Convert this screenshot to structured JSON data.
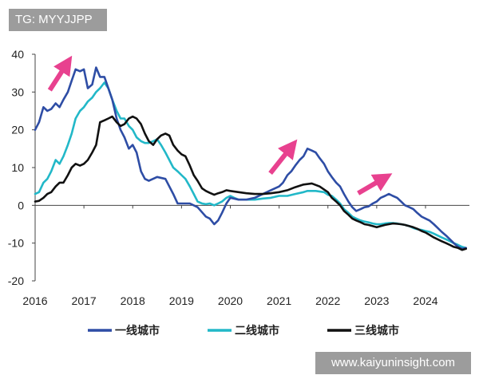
{
  "watermark_top": "TG: MYYJJPP",
  "watermark_bottom": "www.kaiyuninsight.com",
  "chart_data": {
    "type": "line",
    "xlim": [
      2016.0,
      2024.9
    ],
    "ylim": [
      -20,
      40
    ],
    "x_ticks": [
      "2016",
      "2017",
      "2018",
      "2019",
      "2020",
      "2021",
      "2022",
      "2023",
      "2024"
    ],
    "y_ticks": [
      "40",
      "30",
      "20",
      "10",
      "0",
      "-10",
      "-20"
    ],
    "grid": false,
    "legend_position": "bottom",
    "annotations": [
      "up-arrow-2016",
      "up-arrow-2021",
      "up-arrow-2023"
    ],
    "series": [
      {
        "name": "一线城市",
        "color": "#2e4da5",
        "points": [
          [
            2016.0,
            20
          ],
          [
            2016.08,
            22
          ],
          [
            2016.17,
            26
          ],
          [
            2016.25,
            25
          ],
          [
            2016.33,
            25.5
          ],
          [
            2016.42,
            27
          ],
          [
            2016.5,
            26
          ],
          [
            2016.58,
            28
          ],
          [
            2016.67,
            30
          ],
          [
            2016.75,
            33
          ],
          [
            2016.83,
            36
          ],
          [
            2016.92,
            35.5
          ],
          [
            2017.0,
            36
          ],
          [
            2017.08,
            31
          ],
          [
            2017.17,
            32
          ],
          [
            2017.25,
            36.5
          ],
          [
            2017.33,
            34
          ],
          [
            2017.42,
            34
          ],
          [
            2017.5,
            31
          ],
          [
            2017.58,
            28
          ],
          [
            2017.67,
            23
          ],
          [
            2017.75,
            20
          ],
          [
            2017.83,
            18
          ],
          [
            2017.92,
            15
          ],
          [
            2018.0,
            16
          ],
          [
            2018.08,
            14
          ],
          [
            2018.17,
            9
          ],
          [
            2018.25,
            7
          ],
          [
            2018.33,
            6.5
          ],
          [
            2018.5,
            7.5
          ],
          [
            2018.67,
            7
          ],
          [
            2018.83,
            3
          ],
          [
            2018.92,
            0.5
          ],
          [
            2019.0,
            0.5
          ],
          [
            2019.17,
            0.5
          ],
          [
            2019.33,
            -0.5
          ],
          [
            2019.5,
            -3
          ],
          [
            2019.58,
            -3.5
          ],
          [
            2019.67,
            -5
          ],
          [
            2019.75,
            -4
          ],
          [
            2019.83,
            -2
          ],
          [
            2019.92,
            0.5
          ],
          [
            2020.0,
            2
          ],
          [
            2020.17,
            1.5
          ],
          [
            2020.33,
            1.5
          ],
          [
            2020.5,
            2
          ],
          [
            2020.67,
            3
          ],
          [
            2020.83,
            4
          ],
          [
            2021.0,
            5
          ],
          [
            2021.08,
            6
          ],
          [
            2021.17,
            8
          ],
          [
            2021.25,
            9
          ],
          [
            2021.33,
            10.5
          ],
          [
            2021.42,
            12
          ],
          [
            2021.5,
            13
          ],
          [
            2021.58,
            15
          ],
          [
            2021.67,
            14.5
          ],
          [
            2021.75,
            14
          ],
          [
            2021.83,
            12.5
          ],
          [
            2021.92,
            11
          ],
          [
            2022.0,
            9
          ],
          [
            2022.08,
            7.5
          ],
          [
            2022.17,
            6
          ],
          [
            2022.25,
            5
          ],
          [
            2022.33,
            3
          ],
          [
            2022.42,
            1
          ],
          [
            2022.5,
            -0.5
          ],
          [
            2022.58,
            -1.5
          ],
          [
            2022.67,
            -1
          ],
          [
            2022.75,
            -0.5
          ],
          [
            2022.83,
            -0.3
          ],
          [
            2022.92,
            0.5
          ],
          [
            2023.0,
            1
          ],
          [
            2023.08,
            2
          ],
          [
            2023.17,
            2.5
          ],
          [
            2023.25,
            3
          ],
          [
            2023.33,
            2.5
          ],
          [
            2023.42,
            2
          ],
          [
            2023.5,
            1
          ],
          [
            2023.58,
            0
          ],
          [
            2023.67,
            -0.5
          ],
          [
            2023.75,
            -1
          ],
          [
            2023.83,
            -2
          ],
          [
            2023.92,
            -3
          ],
          [
            2024.0,
            -3.5
          ],
          [
            2024.08,
            -4
          ],
          [
            2024.17,
            -5
          ],
          [
            2024.25,
            -6
          ],
          [
            2024.33,
            -7
          ],
          [
            2024.42,
            -8
          ],
          [
            2024.5,
            -9
          ],
          [
            2024.58,
            -10
          ],
          [
            2024.67,
            -11
          ],
          [
            2024.75,
            -11.5
          ],
          [
            2024.83,
            -11.3
          ]
        ]
      },
      {
        "name": "二线城市",
        "color": "#22b8c8",
        "points": [
          [
            2016.0,
            3
          ],
          [
            2016.08,
            3.5
          ],
          [
            2016.17,
            6
          ],
          [
            2016.25,
            7
          ],
          [
            2016.33,
            9
          ],
          [
            2016.42,
            12
          ],
          [
            2016.5,
            11
          ],
          [
            2016.58,
            13
          ],
          [
            2016.67,
            16
          ],
          [
            2016.75,
            19
          ],
          [
            2016.83,
            23
          ],
          [
            2016.92,
            25
          ],
          [
            2017.0,
            26
          ],
          [
            2017.08,
            27.5
          ],
          [
            2017.17,
            28.5
          ],
          [
            2017.25,
            30
          ],
          [
            2017.33,
            31
          ],
          [
            2017.42,
            32.5
          ],
          [
            2017.5,
            31
          ],
          [
            2017.58,
            28
          ],
          [
            2017.67,
            25
          ],
          [
            2017.75,
            23
          ],
          [
            2017.83,
            23
          ],
          [
            2017.92,
            21
          ],
          [
            2018.0,
            20
          ],
          [
            2018.08,
            18
          ],
          [
            2018.17,
            17
          ],
          [
            2018.25,
            16.5
          ],
          [
            2018.33,
            16.5
          ],
          [
            2018.42,
            17
          ],
          [
            2018.5,
            17.5
          ],
          [
            2018.58,
            16
          ],
          [
            2018.67,
            14
          ],
          [
            2018.75,
            12
          ],
          [
            2018.83,
            10
          ],
          [
            2018.92,
            9
          ],
          [
            2019.0,
            8
          ],
          [
            2019.08,
            7
          ],
          [
            2019.17,
            5
          ],
          [
            2019.25,
            3
          ],
          [
            2019.33,
            1
          ],
          [
            2019.42,
            0.5
          ],
          [
            2019.5,
            0.3
          ],
          [
            2019.58,
            0.5
          ],
          [
            2019.67,
            0
          ],
          [
            2019.75,
            0.5
          ],
          [
            2019.83,
            1
          ],
          [
            2019.92,
            2
          ],
          [
            2020.0,
            2.5
          ],
          [
            2020.08,
            2
          ],
          [
            2020.17,
            1.5
          ],
          [
            2020.33,
            1.5
          ],
          [
            2020.5,
            1.5
          ],
          [
            2020.67,
            1.8
          ],
          [
            2020.83,
            2
          ],
          [
            2021.0,
            2.5
          ],
          [
            2021.17,
            2.5
          ],
          [
            2021.33,
            3
          ],
          [
            2021.5,
            3.5
          ],
          [
            2021.58,
            3.8
          ],
          [
            2021.75,
            3.8
          ],
          [
            2021.92,
            3.5
          ],
          [
            2022.0,
            2.8
          ],
          [
            2022.08,
            2.5
          ],
          [
            2022.17,
            1.5
          ],
          [
            2022.25,
            0.5
          ],
          [
            2022.33,
            -1
          ],
          [
            2022.42,
            -2
          ],
          [
            2022.5,
            -3
          ],
          [
            2022.58,
            -3.5
          ],
          [
            2022.67,
            -4
          ],
          [
            2022.75,
            -4.3
          ],
          [
            2022.83,
            -4.5
          ],
          [
            2022.92,
            -4.8
          ],
          [
            2023.0,
            -5
          ],
          [
            2023.08,
            -5
          ],
          [
            2023.17,
            -4.8
          ],
          [
            2023.25,
            -4.7
          ],
          [
            2023.33,
            -4.7
          ],
          [
            2023.42,
            -4.8
          ],
          [
            2023.5,
            -5
          ],
          [
            2023.58,
            -5.2
          ],
          [
            2023.67,
            -5.5
          ],
          [
            2023.75,
            -6
          ],
          [
            2023.83,
            -6.3
          ],
          [
            2023.92,
            -6.5
          ],
          [
            2024.0,
            -6.8
          ],
          [
            2024.08,
            -7
          ],
          [
            2024.17,
            -7.5
          ],
          [
            2024.25,
            -8
          ],
          [
            2024.33,
            -8.5
          ],
          [
            2024.42,
            -9
          ],
          [
            2024.5,
            -9.5
          ],
          [
            2024.58,
            -10
          ],
          [
            2024.67,
            -10.5
          ],
          [
            2024.75,
            -11
          ],
          [
            2024.83,
            -11.3
          ]
        ]
      },
      {
        "name": "三线城市",
        "color": "#111111",
        "points": [
          [
            2016.0,
            1
          ],
          [
            2016.08,
            1.2
          ],
          [
            2016.17,
            2
          ],
          [
            2016.25,
            3
          ],
          [
            2016.33,
            3.5
          ],
          [
            2016.42,
            5
          ],
          [
            2016.5,
            6
          ],
          [
            2016.58,
            6
          ],
          [
            2016.67,
            8
          ],
          [
            2016.75,
            10
          ],
          [
            2016.83,
            11
          ],
          [
            2016.92,
            10.5
          ],
          [
            2017.0,
            11
          ],
          [
            2017.08,
            12
          ],
          [
            2017.17,
            14
          ],
          [
            2017.25,
            16
          ],
          [
            2017.33,
            22
          ],
          [
            2017.42,
            22.5
          ],
          [
            2017.5,
            23
          ],
          [
            2017.58,
            23.5
          ],
          [
            2017.67,
            22
          ],
          [
            2017.75,
            21
          ],
          [
            2017.83,
            21.5
          ],
          [
            2017.92,
            23
          ],
          [
            2018.0,
            23.5
          ],
          [
            2018.08,
            23
          ],
          [
            2018.17,
            21.5
          ],
          [
            2018.25,
            19
          ],
          [
            2018.33,
            17
          ],
          [
            2018.42,
            16
          ],
          [
            2018.5,
            17.5
          ],
          [
            2018.58,
            18.5
          ],
          [
            2018.67,
            19
          ],
          [
            2018.75,
            18.5
          ],
          [
            2018.83,
            16
          ],
          [
            2018.92,
            14.5
          ],
          [
            2019.0,
            13.5
          ],
          [
            2019.08,
            13
          ],
          [
            2019.17,
            10.5
          ],
          [
            2019.25,
            8
          ],
          [
            2019.33,
            6.5
          ],
          [
            2019.42,
            4.5
          ],
          [
            2019.5,
            3.8
          ],
          [
            2019.58,
            3.3
          ],
          [
            2019.67,
            2.8
          ],
          [
            2019.75,
            3.2
          ],
          [
            2019.83,
            3.5
          ],
          [
            2019.92,
            4
          ],
          [
            2020.0,
            3.8
          ],
          [
            2020.17,
            3.5
          ],
          [
            2020.33,
            3.2
          ],
          [
            2020.5,
            3
          ],
          [
            2020.67,
            3
          ],
          [
            2020.83,
            3.2
          ],
          [
            2021.0,
            3.5
          ],
          [
            2021.17,
            4
          ],
          [
            2021.33,
            4.8
          ],
          [
            2021.5,
            5.5
          ],
          [
            2021.67,
            5.8
          ],
          [
            2021.83,
            5
          ],
          [
            2022.0,
            3.5
          ],
          [
            2022.08,
            2
          ],
          [
            2022.17,
            1
          ],
          [
            2022.25,
            0
          ],
          [
            2022.33,
            -1.5
          ],
          [
            2022.42,
            -2.5
          ],
          [
            2022.5,
            -3.5
          ],
          [
            2022.58,
            -4
          ],
          [
            2022.67,
            -4.5
          ],
          [
            2022.75,
            -5
          ],
          [
            2022.83,
            -5.2
          ],
          [
            2022.92,
            -5.5
          ],
          [
            2023.0,
            -5.8
          ],
          [
            2023.08,
            -5.5
          ],
          [
            2023.17,
            -5.2
          ],
          [
            2023.25,
            -5
          ],
          [
            2023.33,
            -4.8
          ],
          [
            2023.42,
            -4.9
          ],
          [
            2023.5,
            -5
          ],
          [
            2023.58,
            -5.2
          ],
          [
            2023.67,
            -5.5
          ],
          [
            2023.75,
            -5.8
          ],
          [
            2023.83,
            -6.2
          ],
          [
            2023.92,
            -6.8
          ],
          [
            2024.0,
            -7.2
          ],
          [
            2024.08,
            -7.8
          ],
          [
            2024.17,
            -8.5
          ],
          [
            2024.25,
            -9
          ],
          [
            2024.33,
            -9.5
          ],
          [
            2024.42,
            -10
          ],
          [
            2024.5,
            -10.5
          ],
          [
            2024.58,
            -11
          ],
          [
            2024.67,
            -11.3
          ],
          [
            2024.75,
            -11.8
          ],
          [
            2024.83,
            -11.5
          ]
        ]
      }
    ]
  }
}
